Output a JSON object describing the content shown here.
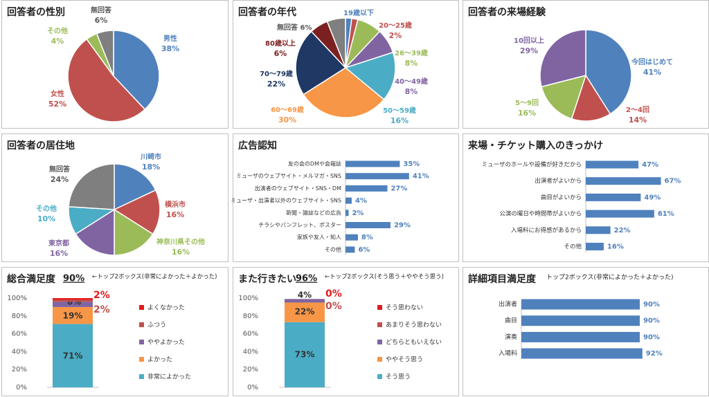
{
  "chart_data": [
    {
      "type": "pie",
      "title": "回答者の性別",
      "slices": [
        {
          "label": "男性",
          "value": 38,
          "value_label": "38%",
          "color": "#4f81bd"
        },
        {
          "label": "女性",
          "value": 52,
          "value_label": "52%",
          "color": "#c0504d"
        },
        {
          "label": "その他",
          "value": 4,
          "value_label": "4%",
          "color": "#9bbb59"
        },
        {
          "label": "無回答",
          "value": 6,
          "value_label": "6%",
          "color": "#7f7f7f"
        }
      ]
    },
    {
      "type": "pie",
      "title": "回答者の年代",
      "slices": [
        {
          "label": "19歳以下",
          "value": 2,
          "value_label": "2%",
          "color": "#4f81bd"
        },
        {
          "label": "20～25歳",
          "value": 2,
          "value_label": "2%",
          "color": "#c0504d"
        },
        {
          "label": "26～39歳",
          "value": 8,
          "value_label": "8%",
          "color": "#9bbb59"
        },
        {
          "label": "40～49歳",
          "value": 8,
          "value_label": "8%",
          "color": "#8064a2"
        },
        {
          "label": "50～59歳",
          "value": 16,
          "value_label": "16%",
          "color": "#4bacc6"
        },
        {
          "label": "60～69歳",
          "value": 30,
          "value_label": "30%",
          "color": "#f79646"
        },
        {
          "label": "70～79歳",
          "value": 22,
          "value_label": "22%",
          "color": "#1f3864"
        },
        {
          "label": "80歳以上",
          "value": 6,
          "value_label": "6%",
          "color": "#7b2020"
        },
        {
          "label": "無回答",
          "value": 6,
          "value_label": "6%",
          "color": "#7f7f7f"
        }
      ]
    },
    {
      "type": "pie",
      "title": "回答者の来場経験",
      "slices": [
        {
          "label": "今回はじめて",
          "value": 41,
          "value_label": "41%",
          "color": "#4f81bd"
        },
        {
          "label": "2～4回",
          "value": 14,
          "value_label": "14%",
          "color": "#c0504d"
        },
        {
          "label": "5～9回",
          "value": 16,
          "value_label": "16%",
          "color": "#9bbb59"
        },
        {
          "label": "10回以上",
          "value": 29,
          "value_label": "29%",
          "color": "#8064a2"
        }
      ]
    },
    {
      "type": "pie",
      "title": "回答者の居住地",
      "slices": [
        {
          "label": "川崎市",
          "value": 18,
          "value_label": "18%",
          "color": "#4f81bd"
        },
        {
          "label": "横浜市",
          "value": 16,
          "value_label": "16%",
          "color": "#c0504d"
        },
        {
          "label": "神奈川県その他",
          "value": 16,
          "value_label": "16%",
          "color": "#9bbb59"
        },
        {
          "label": "東京都",
          "value": 16,
          "value_label": "16%",
          "color": "#8064a2"
        },
        {
          "label": "その他",
          "value": 10,
          "value_label": "10%",
          "color": "#4bacc6"
        },
        {
          "label": "無回答",
          "value": 24,
          "value_label": "24%",
          "color": "#7f7f7f"
        }
      ]
    },
    {
      "type": "bar",
      "orientation": "horizontal",
      "title": "広告認知",
      "categories": [
        "友の会のDMや会報誌",
        "ミューザのウェブサイト・メルマガ・SNS",
        "出演者のウェブサイト・SNS・DM",
        "ミューザ・出演者以外のウェブサイト・SNS",
        "新聞・雑誌などの広告",
        "チラシやパンフレット、ポスター",
        "家族や友人・知人",
        "その他"
      ],
      "values": [
        35,
        41,
        27,
        4,
        2,
        29,
        8,
        6
      ],
      "value_labels": [
        "35%",
        "41%",
        "27%",
        "4%",
        "2%",
        "29%",
        "8%",
        "6%"
      ],
      "color": "#4f81bd"
    },
    {
      "type": "bar",
      "orientation": "horizontal",
      "title": "来場・チケット購入のきっかけ",
      "categories": [
        "ミューザのホールや設備が好きだから",
        "出演者がよいから",
        "曲目がよいから",
        "公演の曜日や時間帯がよいから",
        "入場料にお得感があるから",
        "その他"
      ],
      "values": [
        47,
        67,
        49,
        61,
        22,
        16
      ],
      "value_labels": [
        "47%",
        "67%",
        "49%",
        "61%",
        "22%",
        "16%"
      ],
      "color": "#4f81bd"
    },
    {
      "type": "bar",
      "stacked": true,
      "title": "総合満足度",
      "top2_value": "90%",
      "top2_note": "←トップ2ボックス(非常によかった＋よかった)",
      "y_ticks": [
        "100%",
        "80%",
        "60%",
        "40%",
        "20%",
        "0%"
      ],
      "ylim": [
        0,
        100
      ],
      "segments": [
        {
          "name": "非常によかった",
          "value": 71,
          "value_label": "71%",
          "color": "#4bacc6"
        },
        {
          "name": "よかった",
          "value": 19,
          "value_label": "19%",
          "color": "#f79646"
        },
        {
          "name": "ややよかった",
          "value": 6,
          "value_label": "6%",
          "color": "#8064a2"
        },
        {
          "name": "ふつう",
          "value": 2,
          "value_label": "2%",
          "color": "#c0504d"
        },
        {
          "name": "よくなかった",
          "value": 2,
          "value_label": "2%",
          "color": "#e31a1c"
        }
      ]
    },
    {
      "type": "bar",
      "stacked": true,
      "title": "また行きたい",
      "top2_value": "96%",
      "top2_note": "←トップ2ボックス(そう思う＋ややそう思う)",
      "y_ticks": [
        "100%",
        "80%",
        "60%",
        "40%",
        "20%",
        "0%"
      ],
      "ylim": [
        0,
        100
      ],
      "segments": [
        {
          "name": "そう思う",
          "value": 73,
          "value_label": "73%",
          "color": "#4bacc6"
        },
        {
          "name": "ややそう思う",
          "value": 22,
          "value_label": "22%",
          "color": "#f79646"
        },
        {
          "name": "どちらともいえない",
          "value": 4,
          "value_label": "4%",
          "color": "#8064a2"
        },
        {
          "name": "あまりそう思わない",
          "value": 0,
          "value_label": "0%",
          "color": "#c0504d"
        },
        {
          "name": "そう思わない",
          "value": 0,
          "value_label": "0%",
          "color": "#e31a1c"
        }
      ]
    },
    {
      "type": "bar",
      "orientation": "horizontal",
      "title": "詳細項目満足度",
      "subtitle": "トップ2ボックス(非常によかった＋よかった)",
      "categories": [
        "出演者",
        "曲目",
        "演奏",
        "入場料"
      ],
      "values": [
        90,
        90,
        90,
        92
      ],
      "value_labels": [
        "90%",
        "90%",
        "90%",
        "92%"
      ],
      "color": "#4f81bd"
    }
  ]
}
